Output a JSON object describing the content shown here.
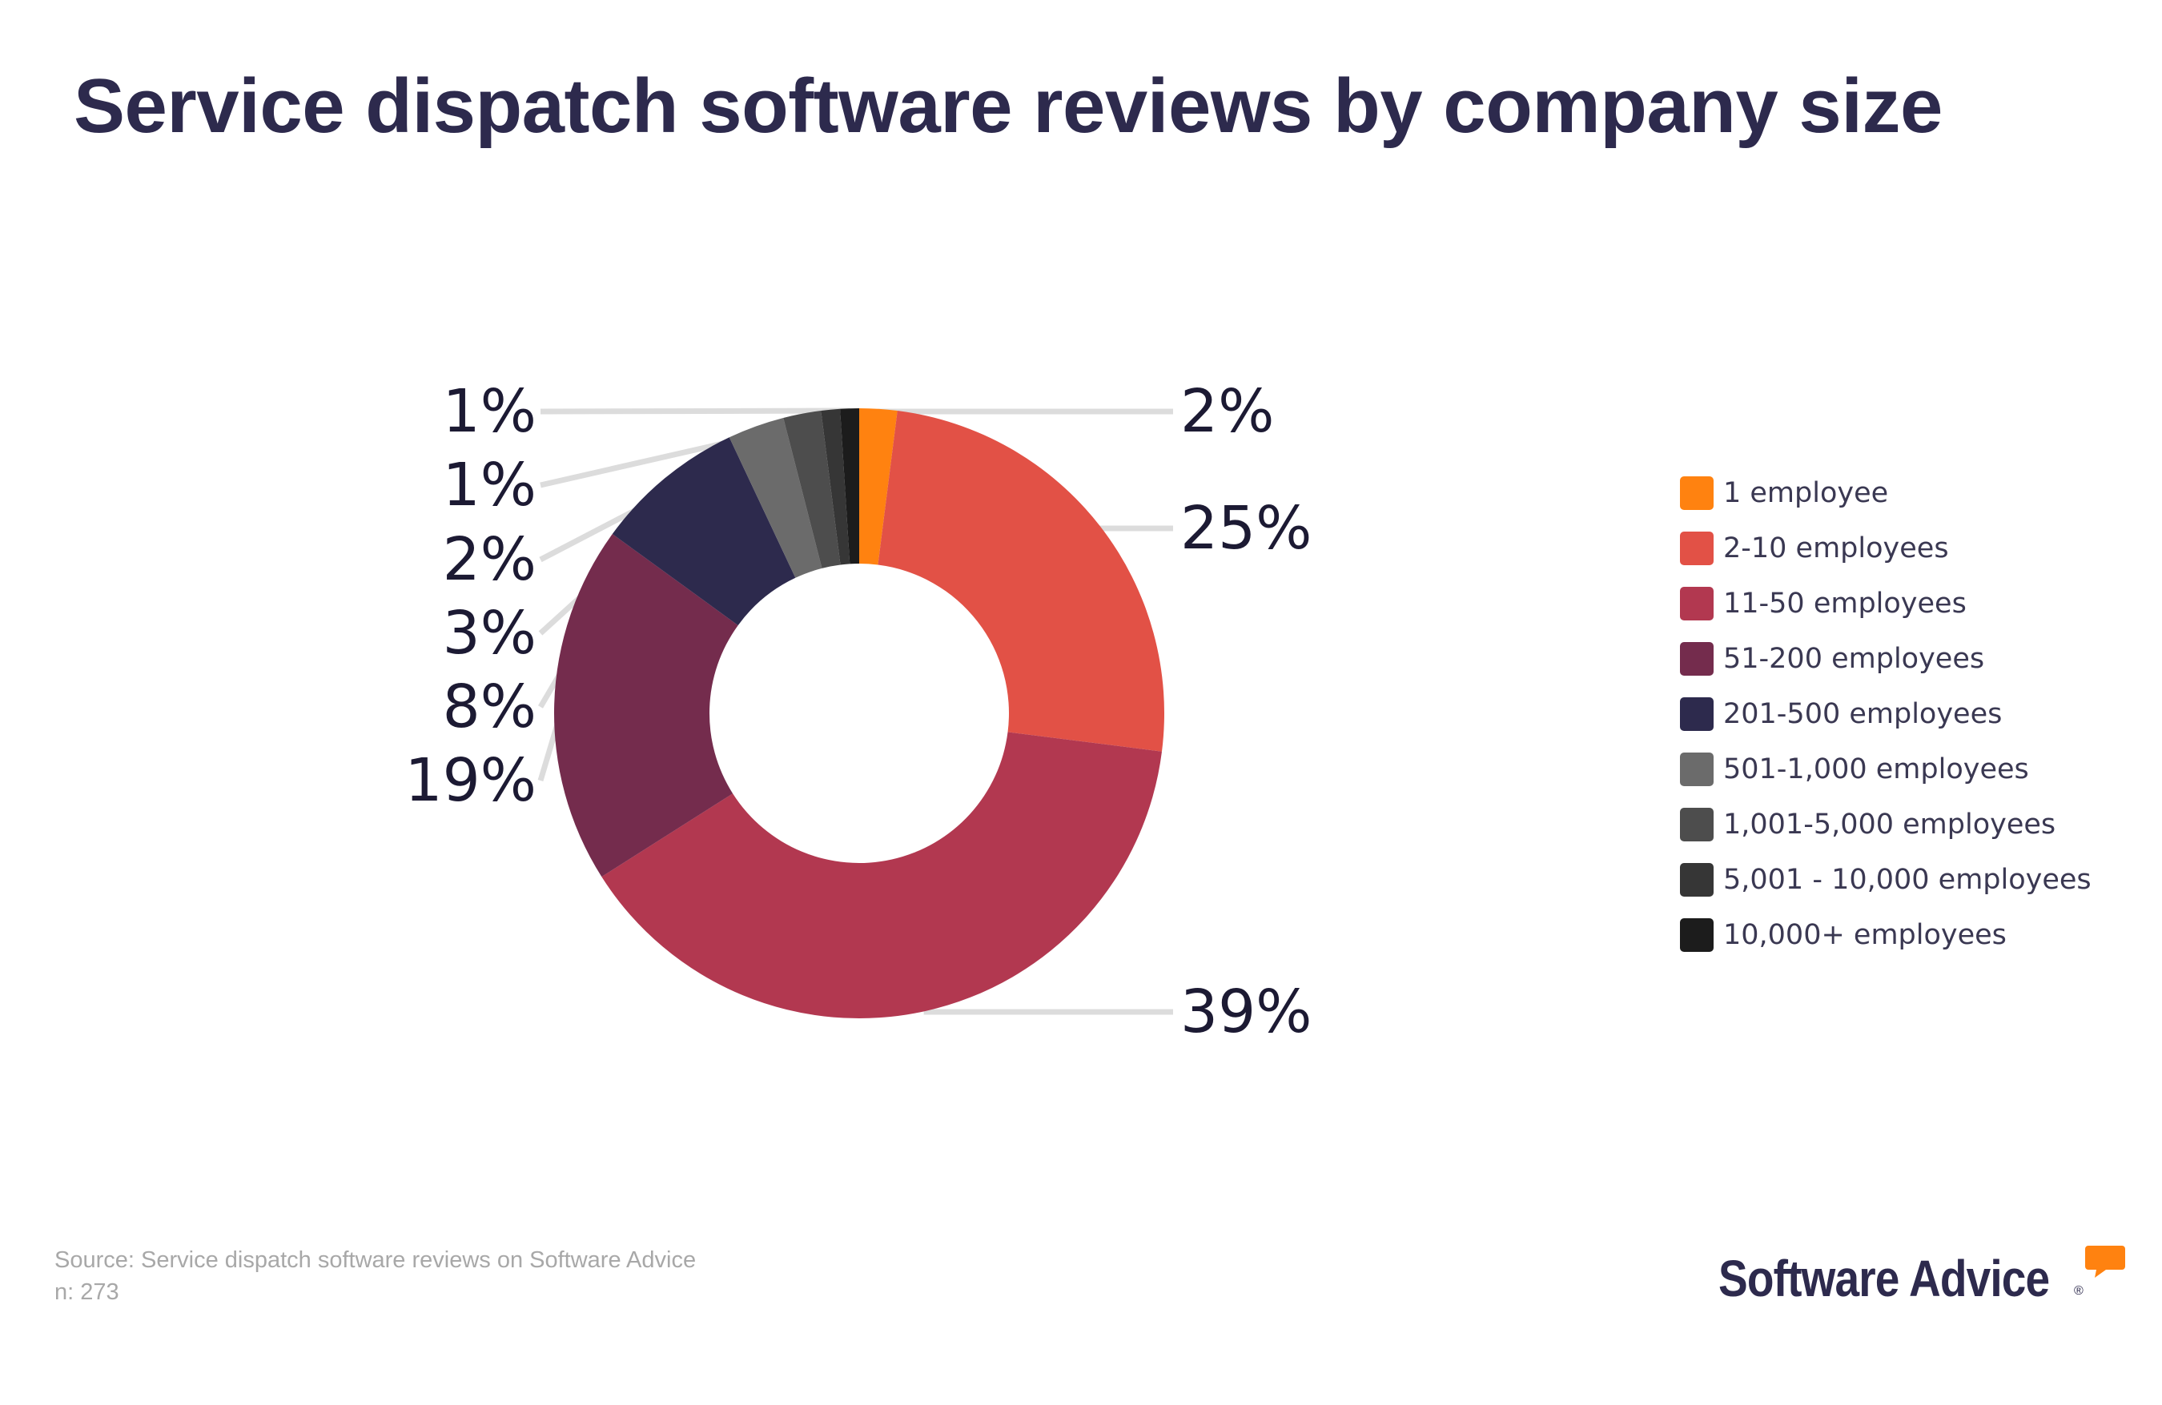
{
  "title": "Service dispatch software reviews by company size",
  "chart_data": {
    "type": "pie",
    "variant": "donut",
    "title": "Service dispatch software reviews by company size",
    "categories": [
      "1 employee",
      "2-10 employees",
      "11-50 employees",
      "51-200 employees",
      "201-500 employees",
      "501-1,000 employees",
      "1,001-5,000 employees",
      "5,001 - 10,000 employees",
      "10,000+ employees"
    ],
    "values": [
      2,
      25,
      39,
      19,
      8,
      3,
      2,
      1,
      1
    ],
    "labels": [
      "2%",
      "25%",
      "39%",
      "19%",
      "8%",
      "3%",
      "2%",
      "1%",
      "1%"
    ],
    "colors": [
      "#ff8210",
      "#e25146",
      "#b23850",
      "#742c4d",
      "#2d2a4d",
      "#6b6b6b",
      "#4d4d4d",
      "#363636",
      "#1c1c1c"
    ],
    "unit": "%",
    "legend_position": "right"
  },
  "footer": {
    "source": "Source: Service dispatch software reviews on Software Advice",
    "n": "n: 273"
  },
  "logo": {
    "text": "Software Advice",
    "mark": "®",
    "accent_color": "#ff8210"
  }
}
